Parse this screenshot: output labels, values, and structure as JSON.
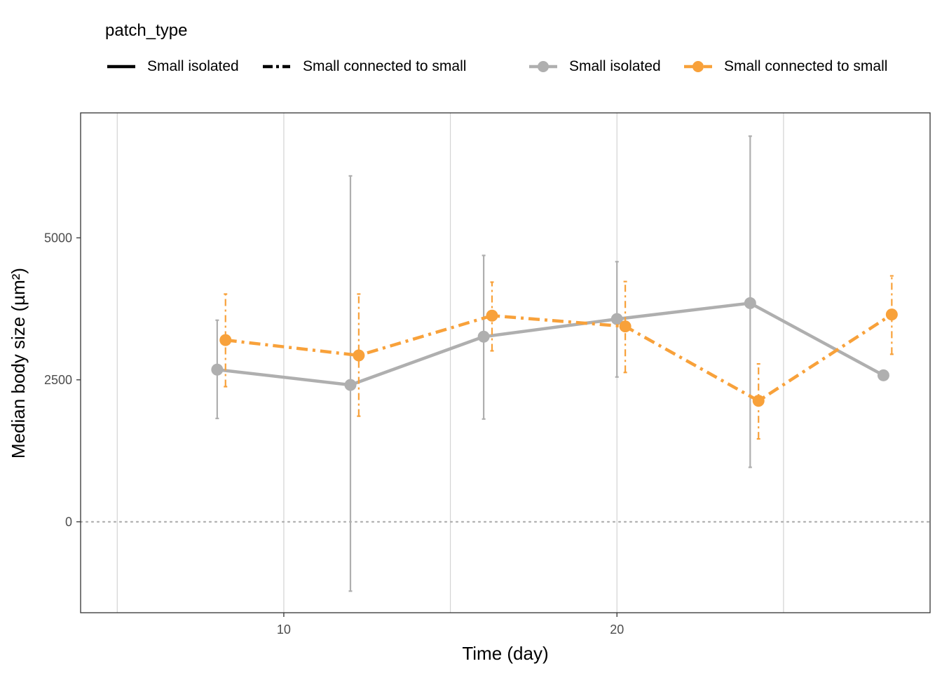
{
  "chart_data": {
    "type": "line",
    "legend": {
      "title": "patch_type",
      "placement": "top",
      "linetype_entries": [
        {
          "label": "Small isolated",
          "linetype": "solid"
        },
        {
          "label": "Small connected to small",
          "linetype": "dashed"
        }
      ],
      "color_entries": [
        {
          "label": "Small isolated",
          "color": "#AFAFAF"
        },
        {
          "label": "Small connected to small",
          "color": "#F8A13A"
        }
      ]
    },
    "xlabel": "Time (day)",
    "ylabel": "Median body size (µm²)",
    "xlim": [
      3.9,
      29.4
    ],
    "ylim": [
      -1600,
      7200
    ],
    "x_ticks": [
      10,
      20
    ],
    "x_tick_labels": [
      "10",
      "20"
    ],
    "y_ticks": [
      0,
      2500,
      5000
    ],
    "y_tick_labels": [
      "0",
      "2500",
      "5000"
    ],
    "x_gridlines": [
      5,
      10,
      15,
      20,
      25
    ],
    "reference_line": {
      "y": 0,
      "style": "dotted",
      "color": "#AFAFAF"
    },
    "series": [
      {
        "name": "Small isolated",
        "color": "#AFAFAF",
        "linetype": "solid",
        "x": [
          8,
          12,
          16,
          20,
          24,
          28
        ],
        "y": [
          2680,
          2410,
          3260,
          3570,
          3850,
          2580
        ],
        "err_low": [
          1820,
          -1220,
          1810,
          2550,
          960,
          null
        ],
        "err_high": [
          3550,
          6090,
          4690,
          4580,
          6790,
          null
        ]
      },
      {
        "name": "Small connected to small",
        "color": "#F8A13A",
        "linetype": "dashed",
        "x": [
          8.25,
          12.25,
          16.25,
          20.25,
          24.25,
          28.25
        ],
        "y": [
          3200,
          2930,
          3630,
          3440,
          2130,
          3650
        ],
        "err_low": [
          2380,
          1860,
          3010,
          2630,
          1460,
          2950
        ],
        "err_high": [
          4010,
          4010,
          4220,
          4230,
          2780,
          4330
        ]
      }
    ]
  }
}
